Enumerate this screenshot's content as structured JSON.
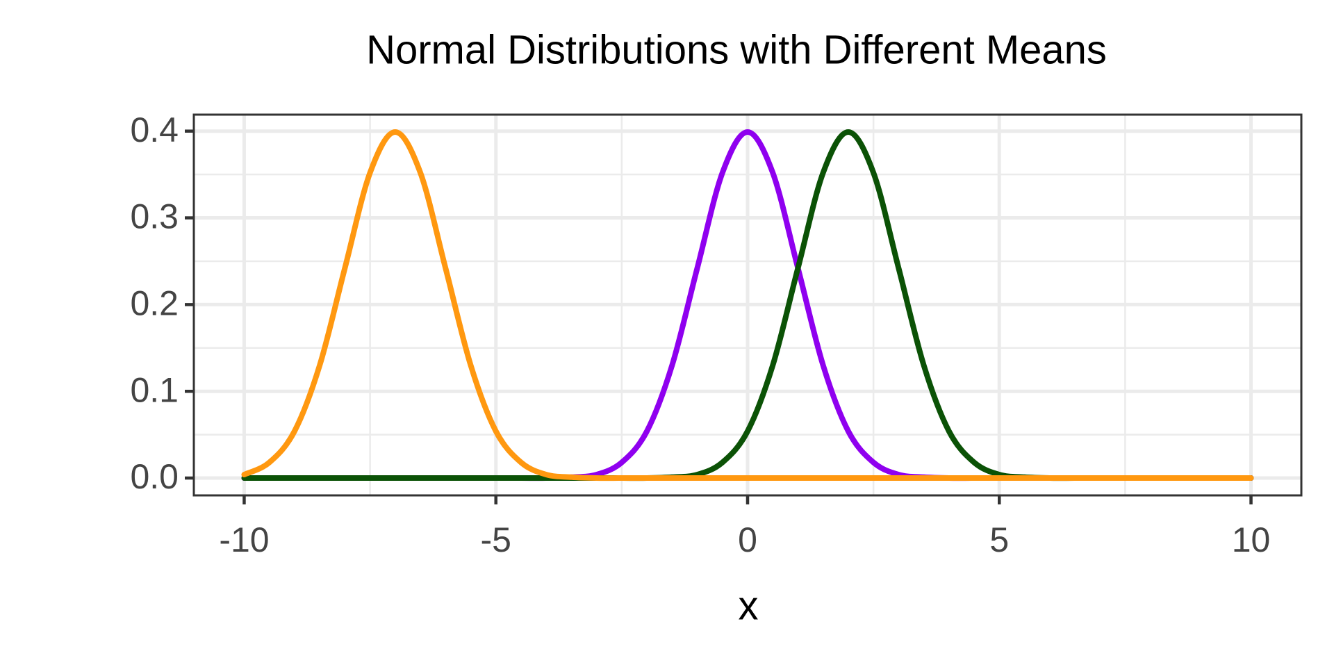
{
  "chart_data": {
    "type": "line",
    "title": "Normal Distributions with Different Means",
    "x_label": "x",
    "x": [
      -10,
      -9.5,
      -9,
      -8.5,
      -8,
      -7.5,
      -7,
      -6.5,
      -6,
      -5.5,
      -5,
      -4.5,
      -4,
      -3.5,
      -3,
      -2.5,
      -2,
      -1.5,
      -1,
      -0.5,
      0,
      0.5,
      1,
      1.5,
      2,
      2.5,
      3,
      3.5,
      4,
      4.5,
      5,
      5.5,
      6,
      6.5,
      7,
      7.5,
      8,
      8.5,
      9,
      9.5,
      10
    ],
    "series": [
      {
        "color": "#8f00ef",
        "values": [
          0,
          0,
          0,
          0,
          0,
          0,
          0,
          0,
          0,
          0,
          0,
          0,
          0,
          0.001,
          0.004,
          0.018,
          0.054,
          0.13,
          0.242,
          0.352,
          0.399,
          0.352,
          0.242,
          0.13,
          0.054,
          0.018,
          0.004,
          0.001,
          0,
          0,
          0,
          0,
          0,
          0,
          0,
          0,
          0,
          0,
          0,
          0,
          0
        ]
      },
      {
        "color": "#0b5206",
        "values": [
          0,
          0,
          0,
          0,
          0,
          0,
          0,
          0,
          0,
          0,
          0,
          0,
          0,
          0,
          0,
          0,
          0,
          0.001,
          0.004,
          0.018,
          0.054,
          0.13,
          0.242,
          0.352,
          0.399,
          0.352,
          0.242,
          0.13,
          0.054,
          0.018,
          0.004,
          0.001,
          0,
          0,
          0,
          0,
          0,
          0,
          0,
          0,
          0
        ]
      },
      {
        "color": "#ff9810",
        "values": [
          0.004,
          0.018,
          0.054,
          0.13,
          0.242,
          0.352,
          0.399,
          0.352,
          0.242,
          0.13,
          0.054,
          0.018,
          0.004,
          0.001,
          0,
          0,
          0,
          0,
          0,
          0,
          0,
          0,
          0,
          0,
          0,
          0,
          0,
          0,
          0,
          0,
          0,
          0,
          0,
          0,
          0,
          0,
          0,
          0,
          0,
          0,
          0
        ]
      }
    ],
    "xlim": [
      -11,
      11
    ],
    "ylim": [
      -0.02,
      0.419
    ],
    "xticks": [
      -10,
      -5,
      0,
      5,
      10
    ],
    "yticks": [
      {
        "value": 0,
        "label": "0.0"
      },
      0.1,
      0.2,
      0.3,
      0.4
    ],
    "grid": true
  }
}
